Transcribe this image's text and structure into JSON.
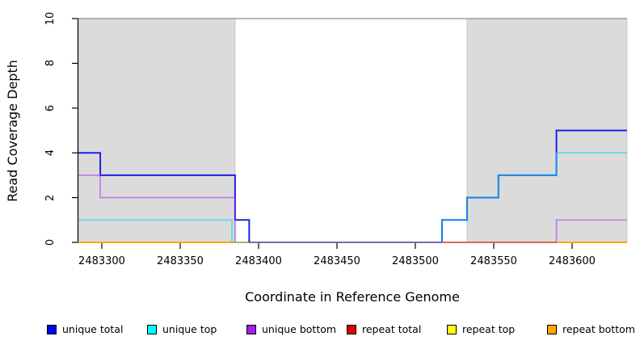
{
  "figure": {
    "xlabel": "Coordinate in Reference Genome",
    "ylabel": "Read Coverage Depth"
  },
  "chart_data": {
    "type": "line",
    "subtype": "step-coverage-plot",
    "title": "",
    "xlabel": "Coordinate in Reference Genome",
    "ylabel": "Read Coverage Depth",
    "xlim": [
      2483285,
      2483635
    ],
    "ylim": [
      0,
      10
    ],
    "x_ticks": [
      2483300,
      2483350,
      2483400,
      2483450,
      2483500,
      2483550,
      2483600
    ],
    "y_ticks": [
      0,
      2,
      4,
      6,
      8,
      10
    ],
    "grid": false,
    "legend_position": "bottom",
    "top_reference_line_y": 10,
    "shaded_regions": [
      {
        "from": 2483285,
        "to": 2483385,
        "meaning": "repeat region band"
      },
      {
        "from": 2483533,
        "to": 2483635,
        "meaning": "repeat region band"
      }
    ],
    "colors": {
      "shade_fill": "#DBDBDB",
      "shade_border": "#C9C9C9",
      "top_line": "#8A8A8A",
      "axis": "#000000"
    },
    "series": [
      {
        "name": "unique total",
        "legend_color": "#0000FF",
        "line_color": "#2020E8",
        "opacity": 1,
        "width": 2,
        "skip_zero": true,
        "breakpoints": [
          [
            2483285,
            4
          ],
          [
            2483299,
            3
          ],
          [
            2483385,
            1
          ],
          [
            2483394,
            0
          ],
          [
            2483517,
            1
          ],
          [
            2483533,
            2
          ],
          [
            2483553,
            3
          ],
          [
            2483590,
            5
          ],
          [
            2483635,
            5
          ]
        ]
      },
      {
        "name": "unique top",
        "legend_color": "#00FFFF",
        "line_color": "#00DDE6",
        "opacity": 0.62,
        "width": 1.7,
        "skip_zero": true,
        "breakpoints": [
          [
            2483285,
            1
          ],
          [
            2483383,
            0
          ],
          [
            2483517,
            1
          ],
          [
            2483533,
            2
          ],
          [
            2483553,
            3
          ],
          [
            2483590,
            4
          ],
          [
            2483635,
            4
          ]
        ]
      },
      {
        "name": "unique bottom",
        "legend_color": "#A020F0",
        "line_color": "#A020F0",
        "opacity": 0.5,
        "width": 1.7,
        "skip_zero": true,
        "breakpoints": [
          [
            2483285,
            3
          ],
          [
            2483299,
            2
          ],
          [
            2483385,
            0
          ],
          [
            2483590,
            1
          ],
          [
            2483635,
            1
          ]
        ]
      },
      {
        "name": "repeat total",
        "legend_color": "#DE0000",
        "line_color": "#DD0000",
        "opacity": 1,
        "width": 1.5,
        "skip_zero": false,
        "breakpoints": [
          [
            2483285,
            0
          ],
          [
            2483635,
            0
          ]
        ]
      },
      {
        "name": "repeat top",
        "legend_color": "#FFFF00",
        "line_color": "#FFFF00",
        "opacity": 1,
        "width": 1.5,
        "skip_zero": false,
        "breakpoints": [
          [
            2483285,
            0
          ],
          [
            2483635,
            0
          ]
        ]
      },
      {
        "name": "repeat bottom",
        "legend_color": "#FFA500",
        "line_color": "#FFA500",
        "opacity": 1,
        "width": 1.8,
        "skip_zero": false,
        "breakpoints": [
          [
            2483285,
            0
          ],
          [
            2483635,
            0
          ]
        ]
      }
    ],
    "background_draw_order": [
      3,
      4,
      5
    ],
    "foreground_draw_order": [
      0,
      1,
      2
    ],
    "baseline_overlay_segments": [
      {
        "from": 2483383,
        "to": 2483394,
        "color": "#7CC87C",
        "meaning": "cyan over orange blend at depth 0"
      },
      {
        "from": 2483394,
        "to": 2483517,
        "color": "#5A4FE0",
        "meaning": "blue+purple blend at depth 0"
      },
      {
        "from": 2483517,
        "to": 2483590,
        "color": "#CE5470",
        "meaning": "purple over orange blend at depth 0"
      }
    ]
  }
}
